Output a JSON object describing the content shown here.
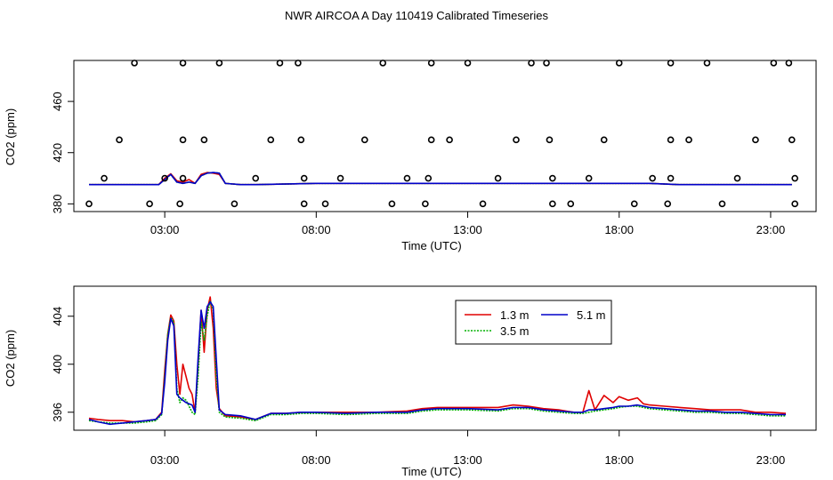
{
  "page_title": "NWR AIRCOA A  Day 110419  Calibrated Timeseries",
  "colors": {
    "h1": "#e00000",
    "h2": "#00b000",
    "h3": "#0000c8",
    "axis": "#000000",
    "markers": "#000000"
  },
  "chart_data": [
    {
      "type": "line",
      "id": "top",
      "title": "",
      "xlabel": "Time (UTC)",
      "ylabel": "CO2 (ppm)",
      "xlim": [
        0,
        24.5
      ],
      "ylim": [
        374,
        492
      ],
      "x_ticks": [
        3,
        8,
        13,
        18,
        23
      ],
      "x_tick_labels": [
        "03:00",
        "08:00",
        "13:00",
        "18:00",
        "23:00"
      ],
      "y_ticks": [
        380,
        420,
        460
      ],
      "y_tick_labels": [
        "380",
        "420",
        "460"
      ],
      "grid": false,
      "legend": null,
      "series": [
        {
          "name": "1.3 m",
          "color": "#e00000",
          "x": [
            0.5,
            1,
            1.5,
            2,
            2.5,
            2.8,
            3.0,
            3.2,
            3.4,
            3.6,
            3.8,
            4.0,
            4.2,
            4.4,
            4.6,
            4.8,
            5.0,
            5.5,
            6,
            8,
            10,
            12,
            14,
            16,
            17,
            18,
            19,
            20,
            22,
            23.7
          ],
          "y": [
            395,
            395,
            395,
            395,
            395,
            395,
            400,
            403.5,
            398,
            397,
            399,
            396,
            403,
            404.5,
            404,
            403,
            396,
            395,
            395,
            396,
            396,
            396,
            396,
            396,
            396,
            396,
            396,
            395,
            395,
            395
          ]
        },
        {
          "name": "3.5 m",
          "color": "#00b000",
          "x": [
            0.5,
            1,
            1.5,
            2,
            2.5,
            2.8,
            3.0,
            3.2,
            3.4,
            3.6,
            3.8,
            4.0,
            4.2,
            4.4,
            4.6,
            4.8,
            5.0,
            5.5,
            6,
            8,
            10,
            12,
            14,
            16,
            17,
            18,
            19,
            20,
            22,
            23.7
          ],
          "y": [
            395,
            395,
            395,
            395,
            395,
            395,
            399,
            403,
            397,
            396,
            397,
            396,
            402,
            404,
            404.5,
            404,
            396,
            395,
            395,
            396,
            396,
            396,
            396,
            396,
            396,
            396,
            396,
            395,
            395,
            395
          ]
        },
        {
          "name": "5.1 m",
          "color": "#0000c8",
          "x": [
            0.5,
            1,
            1.5,
            2,
            2.5,
            2.8,
            3.0,
            3.2,
            3.4,
            3.6,
            3.8,
            4.0,
            4.2,
            4.4,
            4.6,
            4.8,
            5.0,
            5.5,
            6,
            8,
            10,
            12,
            14,
            16,
            17,
            18,
            19,
            20,
            22,
            23.7
          ],
          "y": [
            395,
            395,
            395,
            395,
            395,
            395,
            399,
            403,
            397,
            396,
            397,
            396,
            402,
            404,
            404.5,
            404,
            396,
            395,
            395,
            396,
            396,
            396,
            396,
            396,
            396,
            396,
            396,
            395,
            395,
            395
          ]
        }
      ],
      "markers": {
        "shape": "open-circle",
        "x": [
          2.0,
          3.6,
          4.8,
          6.8,
          7.4,
          10.2,
          11.8,
          13.0,
          15.1,
          15.6,
          18.0,
          19.7,
          20.9,
          23.1,
          23.6,
          1.5,
          3.6,
          4.3,
          6.5,
          7.5,
          9.6,
          11.8,
          12.4,
          14.6,
          15.7,
          17.5,
          19.7,
          20.3,
          22.5,
          23.7,
          1.0,
          3.0,
          3.6,
          6.0,
          7.6,
          8.8,
          11.0,
          11.7,
          14.0,
          15.8,
          17.0,
          19.1,
          19.7,
          21.9,
          23.8,
          0.5,
          2.5,
          3.5,
          5.3,
          7.6,
          8.3,
          10.5,
          11.6,
          13.5,
          15.8,
          16.4,
          18.5,
          19.6,
          21.4,
          23.8
        ],
        "y": [
          490,
          490,
          490,
          490,
          490,
          490,
          490,
          490,
          490,
          490,
          490,
          490,
          490,
          490,
          490,
          430,
          430,
          430,
          430,
          430,
          430,
          430,
          430,
          430,
          430,
          430,
          430,
          430,
          430,
          430,
          400,
          400,
          400,
          400,
          400,
          400,
          400,
          400,
          400,
          400,
          400,
          400,
          400,
          400,
          400,
          380,
          380,
          380,
          380,
          380,
          380,
          380,
          380,
          380,
          380,
          380,
          380,
          380,
          380,
          380
        ]
      }
    },
    {
      "type": "line",
      "id": "bottom",
      "title": "",
      "xlabel": "Time (UTC)",
      "ylabel": "CO2 (ppm)",
      "xlim": [
        0,
        24.5
      ],
      "ylim": [
        394.5,
        406.5
      ],
      "x_ticks": [
        3,
        8,
        13,
        18,
        23
      ],
      "x_tick_labels": [
        "03:00",
        "08:00",
        "13:00",
        "18:00",
        "23:00"
      ],
      "y_ticks": [
        396,
        400,
        404
      ],
      "y_tick_labels": [
        "396",
        "400",
        "404"
      ],
      "grid": false,
      "legend": {
        "placement": "top-center"
      },
      "series": [
        {
          "name": "1.3 m",
          "color": "#e00000",
          "x": [
            0.5,
            0.8,
            1.2,
            1.6,
            2.0,
            2.4,
            2.7,
            2.9,
            3.0,
            3.1,
            3.2,
            3.3,
            3.4,
            3.5,
            3.6,
            3.7,
            3.8,
            3.9,
            4.0,
            4.1,
            4.2,
            4.3,
            4.4,
            4.5,
            4.6,
            4.7,
            4.8,
            5.0,
            5.5,
            6.0,
            6.5,
            7.0,
            7.5,
            8.0,
            9.0,
            10.0,
            11.0,
            11.5,
            12.0,
            13.0,
            14.0,
            14.5,
            15.0,
            15.5,
            16.0,
            16.5,
            16.8,
            17.0,
            17.2,
            17.5,
            17.8,
            18.0,
            18.3,
            18.6,
            18.8,
            19.0,
            19.5,
            20.0,
            20.5,
            21.0,
            21.5,
            22.0,
            22.5,
            23.0,
            23.5
          ],
          "y": [
            395.5,
            395.4,
            395.3,
            395.3,
            395.2,
            395.3,
            395.4,
            396.0,
            399.5,
            402.5,
            404.1,
            403.6,
            400.0,
            397.5,
            400.0,
            399.0,
            398.0,
            397.5,
            396.0,
            400.0,
            404.5,
            401.0,
            404.5,
            405.6,
            403.0,
            398.0,
            396.3,
            395.7,
            395.6,
            395.4,
            395.9,
            395.9,
            396.0,
            396.0,
            396.0,
            396.0,
            396.1,
            396.3,
            396.4,
            396.4,
            396.4,
            396.6,
            396.5,
            396.3,
            396.2,
            396.0,
            396.0,
            397.8,
            396.2,
            397.4,
            396.8,
            397.3,
            397.0,
            397.2,
            396.7,
            396.6,
            396.5,
            396.4,
            396.3,
            396.2,
            396.2,
            396.2,
            396.0,
            396.0,
            395.9
          ]
        },
        {
          "name": "3.5 m",
          "color": "#00b000",
          "x": [
            0.5,
            0.8,
            1.2,
            1.6,
            2.0,
            2.4,
            2.7,
            2.9,
            3.0,
            3.1,
            3.2,
            3.3,
            3.4,
            3.5,
            3.6,
            3.7,
            3.8,
            3.9,
            4.0,
            4.1,
            4.2,
            4.3,
            4.4,
            4.5,
            4.6,
            4.7,
            4.8,
            5.0,
            5.5,
            6.0,
            6.5,
            7.0,
            7.5,
            8.0,
            9.0,
            10.0,
            11.0,
            11.5,
            12.0,
            13.0,
            14.0,
            14.5,
            15.0,
            15.5,
            16.0,
            16.5,
            16.8,
            17.0,
            17.2,
            17.5,
            17.8,
            18.0,
            18.3,
            18.6,
            18.8,
            19.0,
            19.5,
            20.0,
            20.5,
            21.0,
            21.5,
            22.0,
            22.5,
            23.0,
            23.5
          ],
          "y": [
            395.3,
            395.2,
            395.1,
            395.1,
            395.1,
            395.2,
            395.3,
            395.8,
            399.0,
            402.5,
            403.9,
            403.5,
            398.0,
            396.8,
            397.2,
            397.0,
            396.5,
            396.0,
            395.8,
            399.0,
            403.5,
            402.0,
            404.0,
            405.3,
            404.5,
            399.0,
            396.0,
            395.6,
            395.5,
            395.3,
            395.8,
            395.8,
            395.9,
            395.9,
            395.8,
            395.9,
            395.9,
            396.1,
            396.2,
            396.2,
            396.1,
            396.3,
            396.3,
            396.1,
            396.0,
            395.9,
            395.9,
            396.0,
            396.1,
            396.2,
            396.3,
            396.4,
            396.5,
            396.5,
            396.4,
            396.3,
            396.2,
            396.1,
            396.0,
            396.0,
            395.9,
            395.9,
            395.8,
            395.7,
            395.7
          ]
        },
        {
          "name": "5.1 m",
          "color": "#0000c8",
          "x": [
            0.5,
            0.8,
            1.2,
            1.6,
            2.0,
            2.4,
            2.7,
            2.9,
            3.0,
            3.1,
            3.2,
            3.3,
            3.4,
            3.5,
            3.6,
            3.7,
            3.8,
            3.9,
            4.0,
            4.1,
            4.2,
            4.3,
            4.4,
            4.5,
            4.6,
            4.7,
            4.8,
            5.0,
            5.5,
            6.0,
            6.5,
            7.0,
            7.5,
            8.0,
            9.0,
            10.0,
            11.0,
            11.5,
            12.0,
            13.0,
            14.0,
            14.5,
            15.0,
            15.5,
            16.0,
            16.5,
            16.8,
            17.0,
            17.2,
            17.5,
            17.8,
            18.0,
            18.3,
            18.6,
            18.8,
            19.0,
            19.5,
            20.0,
            20.5,
            21.0,
            21.5,
            22.0,
            22.5,
            23.0,
            23.5
          ],
          "y": [
            395.4,
            395.2,
            395.0,
            395.1,
            395.2,
            395.3,
            395.4,
            395.9,
            398.5,
            402.0,
            403.8,
            403.2,
            397.5,
            397.2,
            397.0,
            396.8,
            396.7,
            396.6,
            396.0,
            400.5,
            404.5,
            403.0,
            404.8,
            405.2,
            404.8,
            400.5,
            396.2,
            395.8,
            395.7,
            395.4,
            395.9,
            395.9,
            396.0,
            396.0,
            395.9,
            396.0,
            396.0,
            396.2,
            396.3,
            396.3,
            396.2,
            396.4,
            396.4,
            396.2,
            396.1,
            396.0,
            396.0,
            396.2,
            396.2,
            396.3,
            396.4,
            396.5,
            396.5,
            396.6,
            396.5,
            396.4,
            396.3,
            396.2,
            396.1,
            396.1,
            396.0,
            396.0,
            395.9,
            395.8,
            395.8
          ]
        }
      ]
    }
  ]
}
